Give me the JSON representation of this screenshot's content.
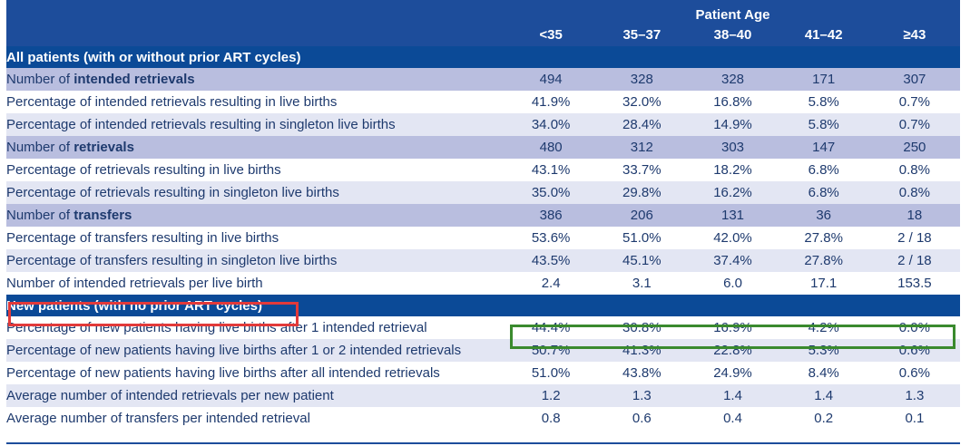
{
  "header": {
    "group_label": "Patient Age",
    "ages": [
      "<35",
      "35–37",
      "38–40",
      "41–42",
      "≥43"
    ]
  },
  "sections": [
    {
      "title": "All patients (with or without prior ART cycles)"
    },
    {
      "title": "New patients (with no prior ART cycles)"
    }
  ],
  "rows_all": [
    {
      "kind": "count",
      "prefix": "Number of ",
      "bold": "intended retrievals",
      "values": [
        "494",
        "328",
        "328",
        "171",
        "307"
      ]
    },
    {
      "kind": "white",
      "label": "Percentage of intended retrievals resulting in live births",
      "values": [
        "41.9%",
        "32.0%",
        "16.8%",
        "5.8%",
        "0.7%"
      ]
    },
    {
      "kind": "shaded",
      "label": "Percentage of intended retrievals resulting in singleton live births",
      "values": [
        "34.0%",
        "28.4%",
        "14.9%",
        "5.8%",
        "0.7%"
      ]
    },
    {
      "kind": "count",
      "prefix": "Number of ",
      "bold": "retrievals",
      "values": [
        "480",
        "312",
        "303",
        "147",
        "250"
      ]
    },
    {
      "kind": "white",
      "label": "Percentage of retrievals resulting in live births",
      "values": [
        "43.1%",
        "33.7%",
        "18.2%",
        "6.8%",
        "0.8%"
      ]
    },
    {
      "kind": "shaded",
      "label": "Percentage of retrievals resulting in singleton live births",
      "values": [
        "35.0%",
        "29.8%",
        "16.2%",
        "6.8%",
        "0.8%"
      ]
    },
    {
      "kind": "count",
      "prefix": "Number of ",
      "bold": "transfers",
      "values": [
        "386",
        "206",
        "131",
        "36",
        "18"
      ]
    },
    {
      "kind": "white",
      "label": "Percentage of transfers resulting in live births",
      "values": [
        "53.6%",
        "51.0%",
        "42.0%",
        "27.8%",
        "2 / 18"
      ]
    },
    {
      "kind": "shaded",
      "label": "Percentage of transfers resulting in singleton live births",
      "values": [
        "43.5%",
        "45.1%",
        "37.4%",
        "27.8%",
        "2 / 18"
      ]
    },
    {
      "kind": "white",
      "label": "Number of intended retrievals per live birth",
      "values": [
        "2.4",
        "3.1",
        "6.0",
        "17.1",
        "153.5"
      ]
    }
  ],
  "rows_new": [
    {
      "kind": "white",
      "label": "Percentage of new patients having live births after 1 intended retrieval",
      "values": [
        "44.4%",
        "30.8%",
        "16.9%",
        "4.2%",
        "0.0%"
      ]
    },
    {
      "kind": "shaded",
      "label": "Percentage of new patients having live births after 1 or 2 intended retrievals",
      "values": [
        "50.7%",
        "41.3%",
        "22.8%",
        "5.3%",
        "0.6%"
      ]
    },
    {
      "kind": "white",
      "label": "Percentage of new patients having live births after all intended retrievals",
      "values": [
        "51.0%",
        "43.8%",
        "24.9%",
        "8.4%",
        "0.6%"
      ]
    },
    {
      "kind": "shaded",
      "label": "Average number of intended retrievals per new patient",
      "values": [
        "1.2",
        "1.3",
        "1.4",
        "1.4",
        "1.3"
      ]
    },
    {
      "kind": "white",
      "label": "Average number of transfers per intended retrieval",
      "values": [
        "0.8",
        "0.6",
        "0.4",
        "0.2",
        "0.1"
      ]
    }
  ],
  "colors": {
    "header_blue": "#1d4d9b",
    "section_blue": "#0b4a97",
    "count_row": "#b9bedf",
    "shaded_row": "#e3e6f3",
    "text": "#1e3a6e",
    "highlight_red": "#e23a3a",
    "highlight_green": "#3a8a2e"
  }
}
